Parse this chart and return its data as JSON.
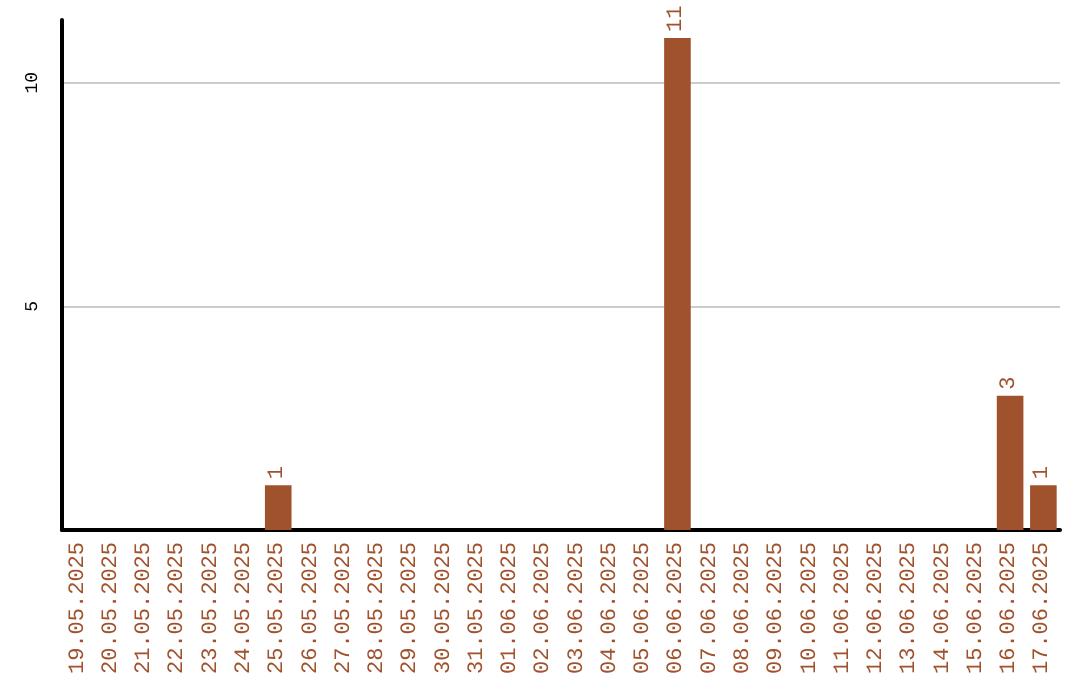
{
  "chart_data": {
    "type": "bar",
    "categories": [
      "19.05.2025",
      "20.05.2025",
      "21.05.2025",
      "22.05.2025",
      "23.05.2025",
      "24.05.2025",
      "25.05.2025",
      "26.05.2025",
      "27.05.2025",
      "28.05.2025",
      "29.05.2025",
      "30.05.2025",
      "31.05.2025",
      "01.06.2025",
      "02.06.2025",
      "03.06.2025",
      "04.06.2025",
      "05.06.2025",
      "06.06.2025",
      "07.06.2025",
      "08.06.2025",
      "09.06.2025",
      "10.06.2025",
      "11.06.2025",
      "12.06.2025",
      "13.06.2025",
      "14.06.2025",
      "15.06.2025",
      "16.06.2025",
      "17.06.2025"
    ],
    "values": [
      0,
      0,
      0,
      0,
      0,
      0,
      1,
      0,
      0,
      0,
      0,
      0,
      0,
      0,
      0,
      0,
      0,
      0,
      11,
      0,
      0,
      0,
      0,
      0,
      0,
      0,
      0,
      0,
      3,
      1
    ],
    "value_labels": [
      null,
      null,
      null,
      null,
      null,
      null,
      "1",
      null,
      null,
      null,
      null,
      null,
      null,
      null,
      null,
      null,
      null,
      null,
      "11",
      null,
      null,
      null,
      null,
      null,
      null,
      null,
      null,
      null,
      "3",
      "1"
    ],
    "color": "#a0522d",
    "ylim": [
      0,
      11.4
    ],
    "yticks": [
      5,
      10
    ],
    "grid": "y"
  }
}
